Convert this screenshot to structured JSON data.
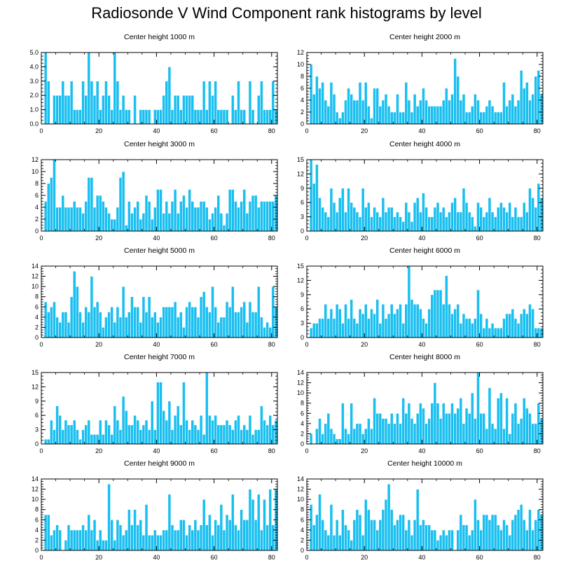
{
  "title": "Radiosonde V Wind Component rank histograms by level",
  "colors": {
    "bar": "#19bff0",
    "bar_edge": "#ffffff",
    "axis": "#000000"
  },
  "chart_data": [
    {
      "type": "bar",
      "title": "Center height 1000 m",
      "xlim": [
        0,
        82
      ],
      "xticks": [
        0,
        20,
        40,
        60,
        80
      ],
      "ylim": [
        0,
        5
      ],
      "yticks": [
        0.0,
        1.0,
        2.0,
        3.0,
        4.0,
        5.0
      ],
      "ytick_labels": [
        "0.0",
        "1.0",
        "2.0",
        "3.0",
        "4.0",
        "5.0"
      ],
      "values": [
        0,
        5,
        3,
        0,
        2,
        2,
        2,
        3,
        2,
        2,
        3,
        1,
        1,
        1,
        3,
        2,
        5,
        3,
        2,
        3,
        1,
        2,
        3,
        2,
        1,
        5,
        3,
        1,
        2,
        1,
        1,
        0,
        2,
        0,
        1,
        1,
        1,
        1,
        0,
        1,
        1,
        1,
        2,
        3,
        4,
        1,
        2,
        2,
        1,
        2,
        2,
        2,
        2,
        1,
        1,
        1,
        3,
        1,
        3,
        2,
        3,
        1,
        1,
        1,
        1,
        0,
        2,
        1,
        3,
        1,
        1,
        0,
        3,
        1,
        0,
        2,
        3,
        1,
        1,
        1,
        3,
        1
      ]
    },
    {
      "type": "bar",
      "title": "Center height 2000 m",
      "xlim": [
        0,
        82
      ],
      "xticks": [
        0,
        20,
        40,
        60,
        80
      ],
      "ylim": [
        0,
        12
      ],
      "yticks": [
        0,
        2,
        4,
        6,
        8,
        10,
        12
      ],
      "ytick_labels": [
        "0",
        "2",
        "4",
        "6",
        "8",
        "10",
        "12"
      ],
      "values": [
        0,
        10,
        5,
        8,
        6,
        7,
        4,
        3,
        7,
        5,
        2,
        1,
        2,
        4,
        6,
        5,
        4,
        4,
        7,
        4,
        7,
        3,
        1,
        6,
        6,
        3,
        4,
        5,
        3,
        2,
        2,
        5,
        2,
        2,
        7,
        4,
        2,
        5,
        3,
        4,
        6,
        4,
        3,
        3,
        3,
        3,
        3,
        4,
        6,
        4,
        5,
        11,
        8,
        4,
        5,
        2,
        2,
        3,
        5,
        4,
        2,
        2,
        3,
        4,
        3,
        2,
        2,
        2,
        7,
        3,
        4,
        5,
        3,
        4,
        9,
        6,
        7,
        4,
        5,
        8,
        9,
        5
      ]
    },
    {
      "type": "bar",
      "title": "Center height 3000 m",
      "xlim": [
        0,
        82
      ],
      "xticks": [
        0,
        20,
        40,
        60,
        80
      ],
      "ylim": [
        0,
        12
      ],
      "yticks": [
        0,
        2,
        4,
        6,
        8,
        10,
        12
      ],
      "ytick_labels": [
        "0",
        "2",
        "4",
        "6",
        "8",
        "10",
        "12"
      ],
      "values": [
        0,
        5,
        8,
        9,
        12,
        4,
        4,
        6,
        4,
        4,
        4,
        5,
        4,
        4,
        3,
        5,
        9,
        9,
        4,
        6,
        6,
        5,
        4,
        3,
        2,
        2,
        4,
        9,
        10,
        1,
        5,
        3,
        4,
        5,
        2,
        3,
        6,
        5,
        2,
        4,
        7,
        7,
        3,
        5,
        3,
        5,
        7,
        3,
        5,
        6,
        4,
        7,
        5,
        4,
        4,
        5,
        5,
        4,
        2,
        3,
        4,
        6,
        3,
        1,
        3,
        7,
        7,
        5,
        4,
        5,
        7,
        3,
        5,
        6,
        6,
        4,
        5,
        5,
        5,
        5,
        5,
        6
      ]
    },
    {
      "type": "bar",
      "title": "Center height 4000 m",
      "xlim": [
        0,
        82
      ],
      "xticks": [
        0,
        20,
        40,
        60,
        80
      ],
      "ylim": [
        0,
        15
      ],
      "yticks": [
        0,
        3,
        6,
        9,
        12,
        15
      ],
      "ytick_labels": [
        "0",
        "3",
        "6",
        "9",
        "12",
        "15"
      ],
      "values": [
        0,
        15,
        10,
        14,
        7,
        5,
        4,
        3,
        9,
        6,
        4,
        7,
        9,
        4,
        9,
        6,
        5,
        4,
        3,
        9,
        5,
        6,
        3,
        5,
        4,
        3,
        7,
        4,
        5,
        5,
        3,
        4,
        3,
        2,
        6,
        4,
        2,
        6,
        7,
        4,
        8,
        5,
        3,
        3,
        5,
        6,
        4,
        5,
        3,
        4,
        6,
        7,
        4,
        4,
        9,
        6,
        4,
        3,
        1,
        6,
        5,
        3,
        4,
        7,
        4,
        3,
        5,
        6,
        5,
        4,
        6,
        3,
        5,
        3,
        3,
        6,
        4,
        9,
        7,
        5,
        10,
        7
      ]
    },
    {
      "type": "bar",
      "title": "Center height 5000 m",
      "xlim": [
        0,
        82
      ],
      "xticks": [
        0,
        20,
        40,
        60,
        80
      ],
      "ylim": [
        0,
        14
      ],
      "yticks": [
        0,
        2,
        4,
        6,
        8,
        10,
        12,
        14
      ],
      "ytick_labels": [
        "0",
        "2",
        "4",
        "6",
        "8",
        "10",
        "12",
        "14"
      ],
      "values": [
        0,
        7,
        5,
        6,
        7,
        4,
        3,
        5,
        5,
        3,
        8,
        13,
        10,
        5,
        3,
        6,
        5,
        12,
        6,
        7,
        5,
        2,
        4,
        5,
        6,
        3,
        6,
        4,
        10,
        4,
        5,
        8,
        6,
        6,
        3,
        8,
        5,
        8,
        4,
        5,
        3,
        4,
        6,
        6,
        6,
        6,
        7,
        4,
        5,
        2,
        6,
        7,
        6,
        6,
        4,
        8,
        9,
        6,
        5,
        10,
        6,
        3,
        4,
        4,
        7,
        6,
        10,
        5,
        5,
        6,
        7,
        3,
        7,
        5,
        5,
        10,
        4,
        2,
        3,
        2,
        10,
        6
      ]
    },
    {
      "type": "bar",
      "title": "Center height 6000 m",
      "xlim": [
        0,
        82
      ],
      "xticks": [
        0,
        20,
        40,
        60,
        80
      ],
      "ylim": [
        0,
        15
      ],
      "yticks": [
        0,
        3,
        6,
        9,
        12,
        15
      ],
      "ytick_labels": [
        "0",
        "3",
        "6",
        "9",
        "12",
        "15"
      ],
      "values": [
        0,
        2,
        3,
        3,
        4,
        4,
        7,
        4,
        6,
        4,
        7,
        6,
        3,
        7,
        4,
        8,
        4,
        3,
        6,
        5,
        7,
        4,
        6,
        5,
        8,
        3,
        7,
        4,
        5,
        7,
        5,
        6,
        7,
        3,
        7,
        15,
        8,
        7,
        7,
        6,
        4,
        3,
        6,
        9,
        10,
        10,
        10,
        7,
        13,
        7,
        5,
        6,
        7,
        3,
        5,
        4,
        4,
        3,
        4,
        10,
        5,
        2,
        4,
        2,
        3,
        2,
        2,
        2,
        4,
        5,
        5,
        6,
        4,
        3,
        5,
        6,
        5,
        7,
        6,
        2,
        2,
        2
      ]
    },
    {
      "type": "bar",
      "title": "Center height 7000 m",
      "xlim": [
        0,
        82
      ],
      "xticks": [
        0,
        20,
        40,
        60,
        80
      ],
      "ylim": [
        0,
        15
      ],
      "yticks": [
        0,
        3,
        6,
        9,
        12,
        15
      ],
      "ytick_labels": [
        "0",
        "3",
        "6",
        "9",
        "12",
        "15"
      ],
      "values": [
        0,
        1,
        1,
        5,
        3,
        8,
        6,
        3,
        5,
        4,
        4,
        5,
        3,
        1,
        3,
        4,
        5,
        2,
        2,
        2,
        5,
        2,
        5,
        4,
        2,
        8,
        5,
        3,
        10,
        7,
        4,
        4,
        6,
        5,
        3,
        4,
        5,
        3,
        9,
        3,
        13,
        13,
        7,
        5,
        9,
        3,
        6,
        8,
        4,
        13,
        5,
        3,
        5,
        4,
        3,
        6,
        2,
        15,
        6,
        5,
        6,
        4,
        4,
        4,
        5,
        4,
        3,
        5,
        6,
        3,
        4,
        3,
        6,
        2,
        3,
        3,
        8,
        5,
        4,
        6,
        4,
        5
      ]
    },
    {
      "type": "bar",
      "title": "Center height 8000 m",
      "xlim": [
        0,
        82
      ],
      "xticks": [
        0,
        20,
        40,
        60,
        80
      ],
      "ylim": [
        0,
        14
      ],
      "yticks": [
        0,
        2,
        4,
        6,
        8,
        10,
        12,
        14
      ],
      "ytick_labels": [
        "0",
        "2",
        "4",
        "6",
        "8",
        "10",
        "12",
        "14"
      ],
      "values": [
        0,
        2,
        0,
        3,
        5,
        2,
        4,
        6,
        3,
        2,
        1,
        1,
        8,
        3,
        2,
        8,
        3,
        4,
        4,
        2,
        3,
        5,
        3,
        9,
        6,
        6,
        5,
        5,
        4,
        6,
        4,
        6,
        4,
        9,
        6,
        8,
        5,
        4,
        6,
        8,
        7,
        4,
        5,
        8,
        12,
        8,
        5,
        8,
        6,
        6,
        8,
        6,
        7,
        9,
        4,
        7,
        6,
        10,
        5,
        14,
        6,
        6,
        3,
        11,
        4,
        3,
        9,
        10,
        3,
        9,
        2,
        6,
        8,
        4,
        5,
        9,
        7,
        6,
        4,
        4,
        8,
        5
      ]
    },
    {
      "type": "bar",
      "title": "Center height 9000 m",
      "xlim": [
        0,
        82
      ],
      "xticks": [
        0,
        20,
        40,
        60,
        80
      ],
      "ylim": [
        0,
        14
      ],
      "yticks": [
        0,
        2,
        4,
        6,
        8,
        10,
        12,
        14
      ],
      "ytick_labels": [
        "0",
        "2",
        "4",
        "6",
        "8",
        "10",
        "12",
        "14"
      ],
      "values": [
        0,
        7,
        7,
        3,
        4,
        5,
        4,
        0,
        2,
        5,
        4,
        4,
        4,
        4,
        5,
        4,
        7,
        4,
        6,
        2,
        4,
        2,
        2,
        13,
        6,
        2,
        6,
        5,
        3,
        4,
        8,
        5,
        8,
        5,
        6,
        3,
        9,
        3,
        3,
        4,
        3,
        3,
        4,
        4,
        11,
        5,
        4,
        4,
        6,
        6,
        3,
        5,
        4,
        6,
        4,
        5,
        10,
        5,
        7,
        3,
        6,
        5,
        9,
        4,
        7,
        6,
        11,
        5,
        4,
        8,
        6,
        6,
        12,
        10,
        6,
        11,
        4,
        10,
        5,
        12,
        5,
        12
      ]
    },
    {
      "type": "bar",
      "title": "Center height 10000 m",
      "xlim": [
        0,
        82
      ],
      "xticks": [
        0,
        20,
        40,
        60,
        80
      ],
      "ylim": [
        0,
        14
      ],
      "yticks": [
        0,
        2,
        4,
        6,
        8,
        10,
        12,
        14
      ],
      "ytick_labels": [
        "0",
        "2",
        "4",
        "6",
        "8",
        "10",
        "12",
        "14"
      ],
      "values": [
        0,
        9,
        5,
        7,
        11,
        6,
        4,
        3,
        9,
        3,
        6,
        3,
        8,
        5,
        4,
        2,
        6,
        8,
        7,
        3,
        10,
        8,
        6,
        6,
        4,
        6,
        8,
        10,
        13,
        8,
        5,
        6,
        7,
        7,
        4,
        6,
        3,
        6,
        12,
        5,
        6,
        5,
        5,
        4,
        4,
        2,
        3,
        4,
        3,
        4,
        4,
        0,
        4,
        7,
        5,
        5,
        3,
        4,
        10,
        6,
        4,
        7,
        7,
        6,
        7,
        7,
        5,
        4,
        6,
        5,
        3,
        6,
        7,
        8,
        9,
        6,
        4,
        8,
        4,
        6,
        8,
        7
      ]
    }
  ]
}
